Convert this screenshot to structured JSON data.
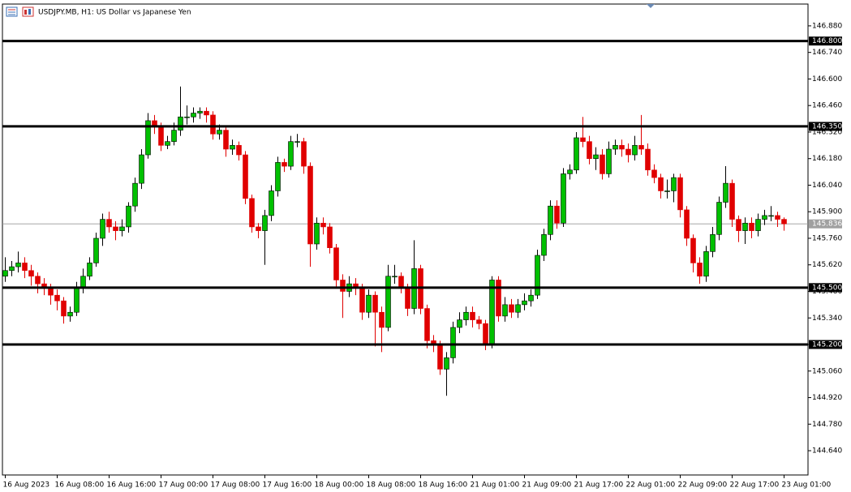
{
  "chart_data": {
    "type": "candlestick",
    "title": "USDJPY.MB, H1:  US Dollar vs Japanese Yen",
    "categories": [
      "16 Aug 2023",
      null,
      null,
      null,
      null,
      null,
      null,
      null,
      "16 Aug 08:00",
      null,
      null,
      null,
      null,
      null,
      null,
      null,
      "16 Aug 16:00",
      null,
      null,
      null,
      null,
      null,
      null,
      null,
      "17 Aug 00:00",
      null,
      null,
      null,
      null,
      null,
      null,
      null,
      "17 Aug 08:00",
      null,
      null,
      null,
      null,
      null,
      null,
      null,
      "17 Aug 16:00",
      null,
      null,
      null,
      null,
      null,
      null,
      null,
      "18 Aug 00:00",
      null,
      null,
      null,
      null,
      null,
      null,
      null,
      "18 Aug 08:00",
      null,
      null,
      null,
      null,
      null,
      null,
      null,
      "18 Aug 16:00",
      null,
      null,
      null,
      null,
      null,
      null,
      null,
      "21 Aug 01:00",
      null,
      null,
      null,
      null,
      null,
      null,
      null,
      "21 Aug 09:00",
      null,
      null,
      null,
      null,
      null,
      null,
      null,
      "21 Aug 17:00",
      null,
      null,
      null,
      null,
      null,
      null,
      null,
      "22 Aug 01:00",
      null,
      null,
      null,
      null,
      null,
      null,
      null,
      "22 Aug 09:00",
      null,
      null,
      null,
      null,
      null,
      null,
      null,
      "22 Aug 17:00",
      null,
      null,
      null,
      null,
      null,
      null,
      null,
      "23 Aug 01:00"
    ],
    "open": [
      145.56,
      145.59,
      145.61,
      145.63,
      145.59,
      145.56,
      145.52,
      145.5,
      145.46,
      145.43,
      145.35,
      145.37,
      145.5,
      145.56,
      145.63,
      145.76,
      145.86,
      145.82,
      145.8,
      145.82,
      145.93,
      146.05,
      146.2,
      146.38,
      146.35,
      146.25,
      146.27,
      146.33,
      146.4,
      146.4,
      146.42,
      146.43,
      146.41,
      146.31,
      146.33,
      146.23,
      146.25,
      146.2,
      145.97,
      145.82,
      145.8,
      145.88,
      146.01,
      146.16,
      146.14,
      146.27,
      146.27,
      146.14,
      145.73,
      145.84,
      145.82,
      145.71,
      145.54,
      145.48,
      145.52,
      145.5,
      145.37,
      145.46,
      145.37,
      145.29,
      145.56,
      145.56,
      145.5,
      145.39,
      145.6,
      145.39,
      145.22,
      145.2,
      145.07,
      145.13,
      145.29,
      145.33,
      145.37,
      145.33,
      145.31,
      145.2,
      145.54,
      145.35,
      145.41,
      145.37,
      145.41,
      145.43,
      145.46,
      145.67,
      145.78,
      145.93,
      145.84,
      146.1,
      146.12,
      146.29,
      146.27,
      146.18,
      146.2,
      146.1,
      146.23,
      146.25,
      146.23,
      146.2,
      146.25,
      146.23,
      146.12,
      146.08,
      146.01,
      146.01,
      146.08,
      145.91,
      145.76,
      145.63,
      145.56,
      145.69,
      145.78,
      145.95,
      146.05,
      145.86,
      145.8,
      145.84,
      145.8,
      145.86,
      145.88,
      145.88,
      145.86
    ],
    "high": [
      145.66,
      145.64,
      145.69,
      145.66,
      145.62,
      145.58,
      145.55,
      145.52,
      145.49,
      145.45,
      145.4,
      145.53,
      145.6,
      145.66,
      145.79,
      145.89,
      145.9,
      145.85,
      145.86,
      145.95,
      146.08,
      146.23,
      146.42,
      146.41,
      146.37,
      146.3,
      146.37,
      146.56,
      146.46,
      146.45,
      146.45,
      146.45,
      146.43,
      146.36,
      146.35,
      146.28,
      146.27,
      146.22,
      145.99,
      145.84,
      145.91,
      146.04,
      146.19,
      146.18,
      146.3,
      146.31,
      146.29,
      146.16,
      145.87,
      145.87,
      145.84,
      145.73,
      145.57,
      145.56,
      145.55,
      145.52,
      145.49,
      145.48,
      145.4,
      145.62,
      145.62,
      145.58,
      145.52,
      145.75,
      145.62,
      145.41,
      145.25,
      145.22,
      145.16,
      145.32,
      145.37,
      145.4,
      145.4,
      145.35,
      145.33,
      145.56,
      145.56,
      145.45,
      145.44,
      145.44,
      145.47,
      145.49,
      145.7,
      145.81,
      145.96,
      145.96,
      146.13,
      146.15,
      146.32,
      146.4,
      146.3,
      146.24,
      146.23,
      146.27,
      146.28,
      146.28,
      146.26,
      146.3,
      146.41,
      146.26,
      146.15,
      146.1,
      146.07,
      146.1,
      146.1,
      145.93,
      145.78,
      145.66,
      145.72,
      145.82,
      145.98,
      146.14,
      146.07,
      145.88,
      145.87,
      145.87,
      145.89,
      145.91,
      145.93,
      145.9,
      145.87
    ],
    "low": [
      145.53,
      145.56,
      145.58,
      145.55,
      145.51,
      145.47,
      145.46,
      145.41,
      145.38,
      145.31,
      145.32,
      145.35,
      145.47,
      145.54,
      145.61,
      145.72,
      145.79,
      145.75,
      145.77,
      145.79,
      145.9,
      146.02,
      146.18,
      146.31,
      146.22,
      146.23,
      146.25,
      146.3,
      146.36,
      146.37,
      146.39,
      146.37,
      146.28,
      146.28,
      146.19,
      146.2,
      146.17,
      145.94,
      145.79,
      145.76,
      145.62,
      145.85,
      145.98,
      146.11,
      146.12,
      146.24,
      146.1,
      145.61,
      145.7,
      145.78,
      145.68,
      145.5,
      145.34,
      145.45,
      145.46,
      145.33,
      145.34,
      145.19,
      145.16,
      145.27,
      145.52,
      145.47,
      145.35,
      145.36,
      145.36,
      145.18,
      145.16,
      145.04,
      144.93,
      145.1,
      145.26,
      145.3,
      145.29,
      145.28,
      145.17,
      145.18,
      145.32,
      145.32,
      145.34,
      145.34,
      145.38,
      145.4,
      145.44,
      145.64,
      145.75,
      145.81,
      145.82,
      146.07,
      146.1,
      146.24,
      146.15,
      146.12,
      146.07,
      146.08,
      146.2,
      146.19,
      146.16,
      146.17,
      146.2,
      146.09,
      146.05,
      145.97,
      145.97,
      145.95,
      145.87,
      145.72,
      145.58,
      145.52,
      145.53,
      145.66,
      145.75,
      145.92,
      145.82,
      145.74,
      145.73,
      145.76,
      145.77,
      145.83,
      145.85,
      145.82,
      145.8
    ],
    "close": [
      145.59,
      145.61,
      145.63,
      145.59,
      145.56,
      145.52,
      145.5,
      145.46,
      145.43,
      145.35,
      145.37,
      145.5,
      145.56,
      145.63,
      145.76,
      145.86,
      145.82,
      145.8,
      145.82,
      145.93,
      146.05,
      146.2,
      146.38,
      146.35,
      146.25,
      146.27,
      146.33,
      146.4,
      146.4,
      146.42,
      146.43,
      146.41,
      146.31,
      146.33,
      146.23,
      146.25,
      146.2,
      145.97,
      145.82,
      145.8,
      145.88,
      146.01,
      146.16,
      146.14,
      146.27,
      146.27,
      146.14,
      145.73,
      145.84,
      145.82,
      145.71,
      145.54,
      145.48,
      145.52,
      145.5,
      145.37,
      145.46,
      145.37,
      145.29,
      145.56,
      145.56,
      145.5,
      145.39,
      145.6,
      145.39,
      145.22,
      145.2,
      145.07,
      145.13,
      145.29,
      145.33,
      145.37,
      145.33,
      145.31,
      145.2,
      145.54,
      145.35,
      145.41,
      145.37,
      145.41,
      145.43,
      145.46,
      145.67,
      145.78,
      145.93,
      145.84,
      146.1,
      146.12,
      146.29,
      146.27,
      146.18,
      146.2,
      146.1,
      146.23,
      146.25,
      146.23,
      146.2,
      146.25,
      146.23,
      146.12,
      146.08,
      146.01,
      146.01,
      146.08,
      145.91,
      145.76,
      145.63,
      145.56,
      145.69,
      145.78,
      145.95,
      146.05,
      145.86,
      145.8,
      145.84,
      145.8,
      145.86,
      145.88,
      145.88,
      145.86,
      145.836
    ],
    "up_color": "#00c000",
    "down_color": "#e00000",
    "ylim": [
      144.512,
      146.995
    ],
    "yticks": [
      {
        "value": 146.88,
        "label": "146.880"
      },
      {
        "value": 146.74,
        "label": "146.740"
      },
      {
        "value": 146.6,
        "label": "146.600"
      },
      {
        "value": 146.46,
        "label": "146.460"
      },
      {
        "value": 146.32,
        "label": "146.320"
      },
      {
        "value": 146.18,
        "label": "146.180"
      },
      {
        "value": 146.04,
        "label": "146.040"
      },
      {
        "value": 145.9,
        "label": "145.900"
      },
      {
        "value": 145.76,
        "label": "145.760"
      },
      {
        "value": 145.62,
        "label": "145.620"
      },
      {
        "value": 145.48,
        "label": "145.480"
      },
      {
        "value": 145.34,
        "label": "145.340"
      },
      {
        "value": 145.2,
        "label": "145.200"
      },
      {
        "value": 145.06,
        "label": "145.060"
      },
      {
        "value": 144.92,
        "label": "144.920"
      },
      {
        "value": 144.78,
        "label": "144.780"
      },
      {
        "value": 144.64,
        "label": "144.640"
      }
    ],
    "levels": [
      {
        "value": 146.8,
        "label": "146.800"
      },
      {
        "value": 146.35,
        "label": "146.350"
      },
      {
        "value": 145.5,
        "label": "145.500"
      },
      {
        "value": 145.2,
        "label": "145.200"
      }
    ],
    "last_price": {
      "value": 145.836,
      "label": "145.836"
    },
    "grid": false
  }
}
